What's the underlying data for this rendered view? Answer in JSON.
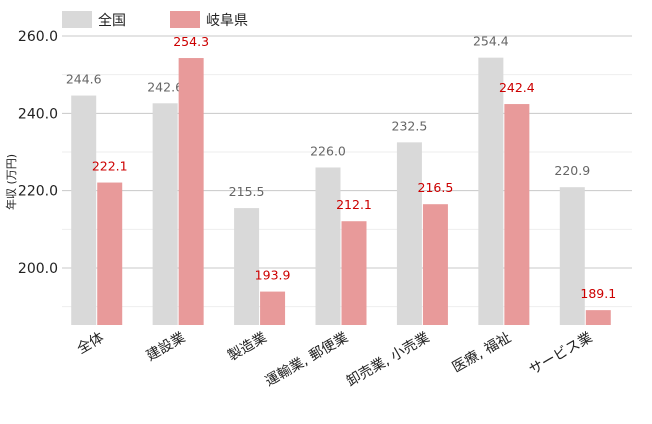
{
  "chart_data": {
    "type": "bar",
    "title": "",
    "xlabel": "",
    "ylabel": "年収 (万円)",
    "categories": [
      "全体",
      "建設業",
      "製造業",
      "運輸業, 郵便業",
      "卸売業, 小売業",
      "医療, 福祉",
      "サービス業"
    ],
    "series": [
      {
        "name": "全国",
        "values": [
          244.6,
          242.6,
          215.5,
          226.0,
          232.5,
          254.4,
          220.9
        ],
        "labels": [
          "244.6",
          "242.6",
          "215.5",
          "226.0",
          "232.5",
          "254.4",
          "220.9"
        ],
        "color": "#d9d9d9",
        "label_color": "#666666"
      },
      {
        "name": "岐阜県",
        "values": [
          222.1,
          254.3,
          193.9,
          212.1,
          216.5,
          242.4,
          189.1
        ],
        "labels": [
          "222.1",
          "254.3",
          "193.9",
          "212.1",
          "216.5",
          "242.4",
          "189.1"
        ],
        "color": "#e89a9a",
        "label_color": "#cc0000"
      }
    ],
    "y_ticks": [
      "200.0",
      "220.0",
      "240.0",
      "260.0"
    ],
    "ylim": [
      184.9,
      260.0
    ],
    "grid": true,
    "legend_position": "top-left"
  }
}
